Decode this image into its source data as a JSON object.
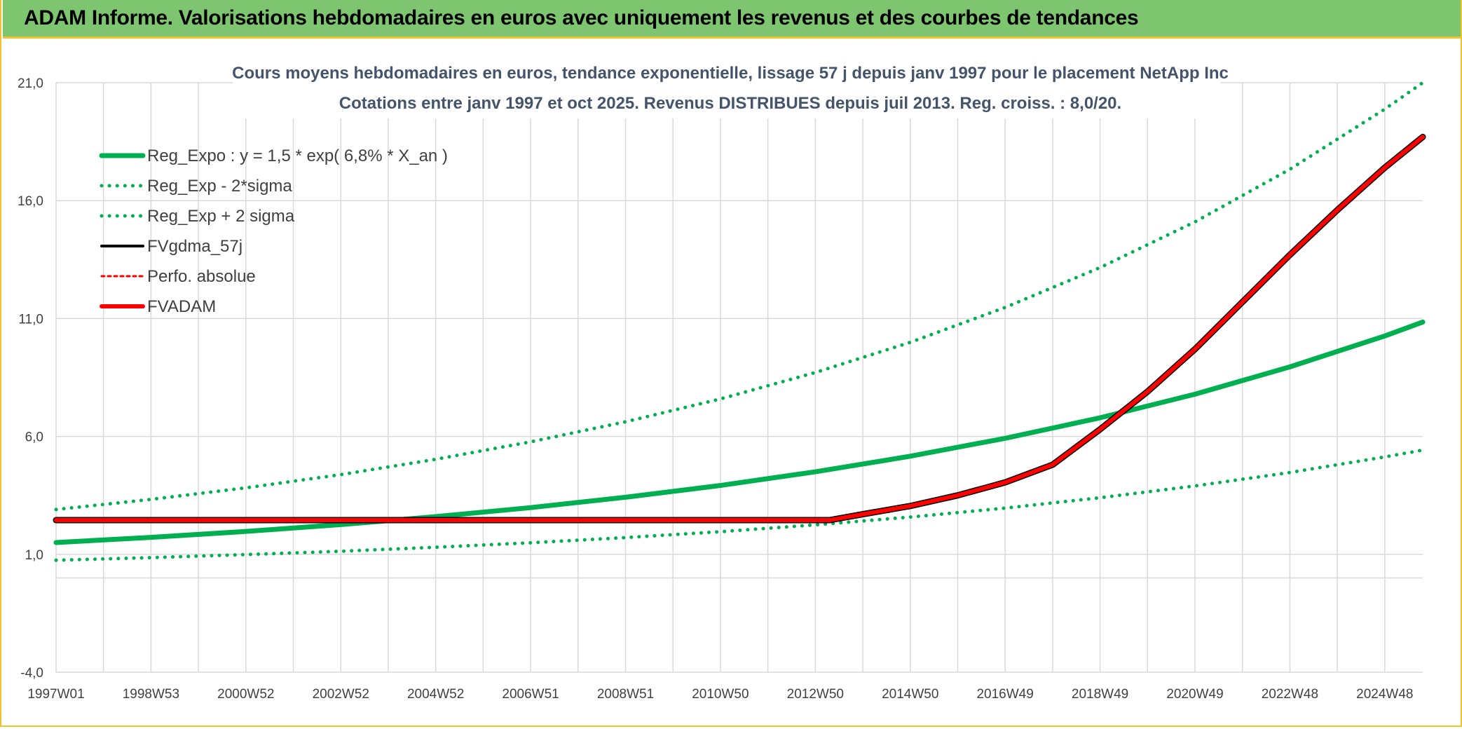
{
  "page": {
    "banner_title": "ADAM Informe. Valorisations hebdomadaires en euros avec uniquement les revenus et des courbes de tendances"
  },
  "colors": {
    "banner": "#7dc66f",
    "frame": "#f2c12e",
    "green": "#00b050",
    "red": "#ff0000",
    "black": "#000000",
    "grid": "#d9d9d9"
  },
  "chart_data": {
    "type": "line",
    "title": "Cours moyens hebdomadaires en euros, tendance exponentielle, lissage 57 j depuis janv 1997 pour le placement NetApp Inc",
    "subtitle": "Cotations entre janv 1997 et oct 2025. Revenus DISTRIBUES depuis juil 2013. Reg. croiss. : 8,0/20.",
    "xlabel": "",
    "ylabel": "",
    "ylim": [
      -4,
      21
    ],
    "xlim": [
      1997.0,
      2025.8
    ],
    "yticks": [
      "-4,0",
      "1,0",
      "6,0",
      "11,0",
      "16,0",
      "21,0"
    ],
    "ytick_values": [
      -4,
      1,
      6,
      11,
      16,
      21
    ],
    "xticks": [
      "1997W01",
      "1998W53",
      "2000W52",
      "2002W52",
      "2004W52",
      "2006W51",
      "2008W51",
      "2010W50",
      "2012W50",
      "2014W50",
      "2016W49",
      "2018W49",
      "2020W49",
      "2022W48",
      "2024W48"
    ],
    "xtick_values": [
      1997.0,
      1999.0,
      2001.0,
      2003.0,
      2005.0,
      2007.0,
      2009.0,
      2011.0,
      2013.0,
      2015.0,
      2017.0,
      2019.0,
      2021.0,
      2023.0,
      2025.0
    ],
    "grid": true,
    "legend": "top-left",
    "series": [
      {
        "name": "Reg_Expo : y = 1,5 * exp( 6,8% *  X_an )",
        "style": "solid-thick",
        "color": "#00b050",
        "x": [
          1997.0,
          1999.0,
          2001.0,
          2003.0,
          2005.0,
          2007.0,
          2009.0,
          2011.0,
          2013.0,
          2015.0,
          2017.0,
          2019.0,
          2021.0,
          2023.0,
          2025.0,
          2025.8
        ],
        "values": [
          1.5,
          1.72,
          1.97,
          2.26,
          2.6,
          2.98,
          3.42,
          3.92,
          4.5,
          5.16,
          5.92,
          6.79,
          7.79,
          8.95,
          10.26,
          10.85
        ]
      },
      {
        "name": "Reg_Exp - 2*sigma",
        "style": "dotted",
        "color": "#00b050",
        "x": [
          1997.0,
          1999.0,
          2001.0,
          2003.0,
          2005.0,
          2007.0,
          2009.0,
          2011.0,
          2013.0,
          2015.0,
          2017.0,
          2019.0,
          2021.0,
          2023.0,
          2025.0,
          2025.8
        ],
        "values": [
          0.75,
          0.86,
          0.99,
          1.13,
          1.3,
          1.49,
          1.71,
          1.96,
          2.25,
          2.58,
          2.96,
          3.4,
          3.9,
          4.47,
          5.13,
          5.42
        ]
      },
      {
        "name": "Reg_Exp + 2 sigma",
        "style": "dotted",
        "color": "#00b050",
        "x": [
          1997.0,
          1999.0,
          2001.0,
          2003.0,
          2005.0,
          2007.0,
          2009.0,
          2011.0,
          2013.0,
          2015.0,
          2017.0,
          2019.0,
          2021.0,
          2023.0,
          2025.0,
          2025.8
        ],
        "values": [
          2.9,
          3.33,
          3.82,
          4.38,
          5.03,
          5.77,
          6.62,
          7.59,
          8.71,
          9.99,
          11.47,
          13.16,
          15.1,
          17.33,
          19.88,
          21.0
        ]
      },
      {
        "name": "FVgdma_57j",
        "style": "solid",
        "color": "#000000",
        "x": [
          1997.0,
          2013.3,
          2014.0,
          2015.0,
          2016.0,
          2017.0,
          2018.0,
          2019.0,
          2020.0,
          2021.0,
          2022.0,
          2023.0,
          2024.0,
          2025.0,
          2025.8
        ],
        "values": [
          2.45,
          2.45,
          2.7,
          3.05,
          3.5,
          4.05,
          4.8,
          6.3,
          7.9,
          9.7,
          11.7,
          13.7,
          15.6,
          17.4,
          18.7
        ]
      },
      {
        "name": "Perfo. absolue",
        "style": "dotted",
        "color": "#ff0000",
        "x": [
          1997.0,
          2013.3,
          2014.0,
          2015.0,
          2016.0,
          2017.0,
          2018.0,
          2019.0,
          2020.0,
          2021.0,
          2022.0,
          2023.0,
          2024.0,
          2025.0,
          2025.8
        ],
        "values": [
          2.45,
          2.45,
          2.7,
          3.05,
          3.5,
          4.05,
          4.8,
          6.3,
          7.9,
          9.7,
          11.7,
          13.7,
          15.6,
          17.4,
          18.7
        ]
      },
      {
        "name": "FVADAM",
        "style": "solid-thick",
        "color": "#ff0000",
        "x": [
          1997.0,
          2013.3,
          2014.0,
          2015.0,
          2016.0,
          2017.0,
          2018.0,
          2019.0,
          2020.0,
          2021.0,
          2022.0,
          2023.0,
          2024.0,
          2025.0,
          2025.8
        ],
        "values": [
          2.45,
          2.45,
          2.7,
          3.05,
          3.5,
          4.05,
          4.8,
          6.3,
          7.9,
          9.7,
          11.7,
          13.7,
          15.6,
          17.4,
          18.7
        ]
      }
    ]
  }
}
